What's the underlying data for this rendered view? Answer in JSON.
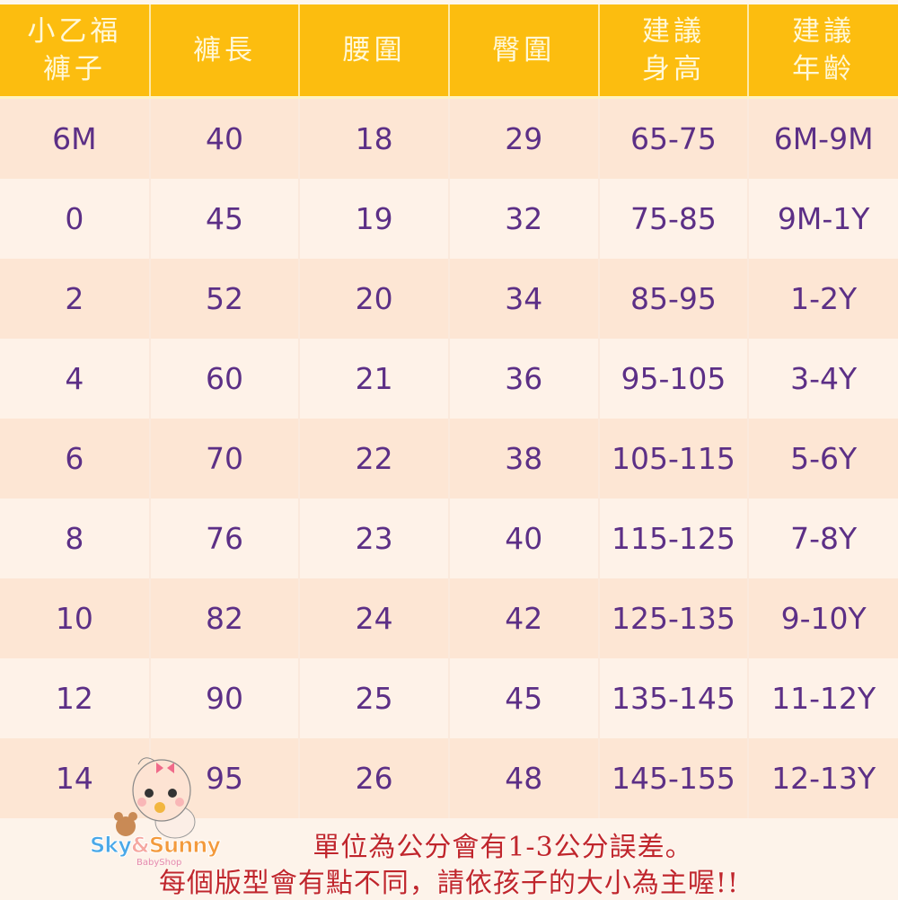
{
  "table": {
    "headers": [
      "小乙福\n褲子",
      "褲長",
      "腰圍",
      "臀圍",
      "建議\n身高",
      "建議\n年齡"
    ],
    "rows": [
      [
        "6M",
        "40",
        "18",
        "29",
        "65-75",
        "6M-9M"
      ],
      [
        "0",
        "45",
        "19",
        "32",
        "75-85",
        "9M-1Y"
      ],
      [
        "2",
        "52",
        "20",
        "34",
        "85-95",
        "1-2Y"
      ],
      [
        "4",
        "60",
        "21",
        "36",
        "95-105",
        "3-4Y"
      ],
      [
        "6",
        "70",
        "22",
        "38",
        "105-115",
        "5-6Y"
      ],
      [
        "8",
        "76",
        "23",
        "40",
        "115-125",
        "7-8Y"
      ],
      [
        "10",
        "82",
        "24",
        "42",
        "125-135",
        "9-10Y"
      ],
      [
        "12",
        "90",
        "25",
        "45",
        "135-145",
        "11-12Y"
      ],
      [
        "14",
        "95",
        "26",
        "48",
        "145-155",
        "12-13Y"
      ]
    ]
  },
  "notes": {
    "line1": "單位為公分會有1-3公分誤差。",
    "line2": "每個版型會有點不同，請依孩子的大小為主喔!!"
  },
  "logo": {
    "sky": "Sky",
    "amp": "&",
    "sunny": "Sunny",
    "sub": "BabyShop"
  },
  "colors": {
    "header_bg": "#fcbd0f",
    "row_odd": "#fde6d4",
    "row_even": "#fef2e8",
    "cell_text": "#5c2f86",
    "note_text": "#c0262c"
  }
}
